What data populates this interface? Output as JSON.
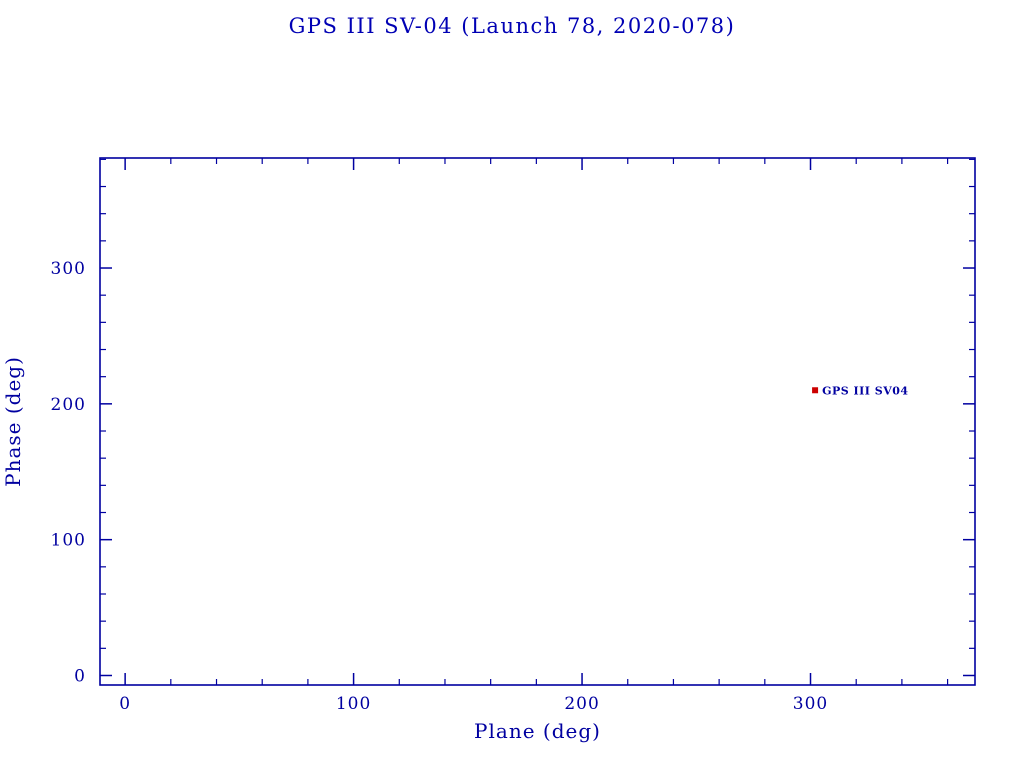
{
  "chart_data": {
    "type": "scatter",
    "title": "GPS III SV-04 (Launch 78, 2020-078)",
    "xlabel": "Plane (deg)",
    "ylabel": "Phase (deg)",
    "xlim": [
      -11,
      372
    ],
    "ylim": [
      -7,
      381
    ],
    "x_ticks": [
      0,
      100,
      200,
      300
    ],
    "y_ticks": [
      0,
      100,
      200,
      300
    ],
    "x_minor_step": 20,
    "y_minor_step": 20,
    "grid": false,
    "legend": "none",
    "axis_color": "#0000a0",
    "label_color": "#0000a0",
    "series": [
      {
        "name": "GPS III SV04",
        "marker": "square",
        "marker_color": "#cc0000",
        "label": "GPS III SV04",
        "label_color": "#0000a0",
        "points": [
          {
            "x": 302,
            "y": 210
          }
        ]
      }
    ]
  }
}
